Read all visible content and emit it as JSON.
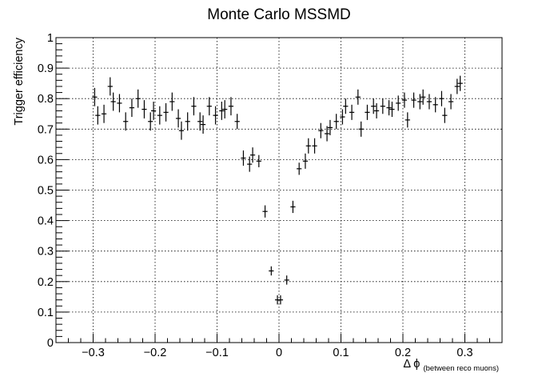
{
  "chart_data": {
    "type": "scatter",
    "title": "Monte Carlo MSSMD",
    "xlabel": "Δ ϕ",
    "xlabel_sub": "(between reco muons)",
    "ylabel": "Trigger efficiency",
    "xlim": [
      -0.36,
      0.36
    ],
    "ylim": [
      0,
      1
    ],
    "grid": true,
    "error_bars": true,
    "x_ticks": [
      -0.3,
      -0.2,
      -0.1,
      0,
      0.1,
      0.2,
      0.3
    ],
    "x_tick_labels": [
      "−0.3",
      "−0.2",
      "−0.1",
      "0",
      "0.1",
      "0.2",
      "0.3"
    ],
    "y_ticks": [
      0,
      0.1,
      0.2,
      0.3,
      0.4,
      0.5,
      0.6,
      0.7,
      0.8,
      0.9,
      1
    ],
    "y_tick_labels": [
      "0",
      "0.1",
      "0.2",
      "0.3",
      "0.4",
      "0.5",
      "0.6",
      "0.7",
      "0.8",
      "0.9",
      "1"
    ],
    "bin_half_width": 0.004,
    "points": [
      {
        "x": -0.2975,
        "y": 0.805,
        "err": 0.03
      },
      {
        "x": -0.2925,
        "y": 0.745,
        "err": 0.03
      },
      {
        "x": -0.2825,
        "y": 0.75,
        "err": 0.03
      },
      {
        "x": -0.2725,
        "y": 0.84,
        "err": 0.03
      },
      {
        "x": -0.2675,
        "y": 0.79,
        "err": 0.03
      },
      {
        "x": -0.2575,
        "y": 0.785,
        "err": 0.03
      },
      {
        "x": -0.2475,
        "y": 0.725,
        "err": 0.03
      },
      {
        "x": -0.2375,
        "y": 0.77,
        "err": 0.03
      },
      {
        "x": -0.2275,
        "y": 0.8,
        "err": 0.03
      },
      {
        "x": -0.2175,
        "y": 0.765,
        "err": 0.03
      },
      {
        "x": -0.2075,
        "y": 0.725,
        "err": 0.03
      },
      {
        "x": -0.2025,
        "y": 0.76,
        "err": 0.03
      },
      {
        "x": -0.1925,
        "y": 0.745,
        "err": 0.03
      },
      {
        "x": -0.1825,
        "y": 0.755,
        "err": 0.03
      },
      {
        "x": -0.1725,
        "y": 0.79,
        "err": 0.03
      },
      {
        "x": -0.1625,
        "y": 0.735,
        "err": 0.03
      },
      {
        "x": -0.1575,
        "y": 0.695,
        "err": 0.03
      },
      {
        "x": -0.1475,
        "y": 0.725,
        "err": 0.03
      },
      {
        "x": -0.1375,
        "y": 0.775,
        "err": 0.03
      },
      {
        "x": -0.1275,
        "y": 0.725,
        "err": 0.03
      },
      {
        "x": -0.1225,
        "y": 0.715,
        "err": 0.03
      },
      {
        "x": -0.1125,
        "y": 0.775,
        "err": 0.03
      },
      {
        "x": -0.1025,
        "y": 0.745,
        "err": 0.03
      },
      {
        "x": -0.0925,
        "y": 0.76,
        "err": 0.03
      },
      {
        "x": -0.0875,
        "y": 0.765,
        "err": 0.03
      },
      {
        "x": -0.0775,
        "y": 0.775,
        "err": 0.03
      },
      {
        "x": -0.0675,
        "y": 0.725,
        "err": 0.025
      },
      {
        "x": -0.0575,
        "y": 0.605,
        "err": 0.025
      },
      {
        "x": -0.0475,
        "y": 0.585,
        "err": 0.025
      },
      {
        "x": -0.0425,
        "y": 0.615,
        "err": 0.025
      },
      {
        "x": -0.0325,
        "y": 0.595,
        "err": 0.02
      },
      {
        "x": -0.0225,
        "y": 0.43,
        "err": 0.02
      },
      {
        "x": -0.0125,
        "y": 0.235,
        "err": 0.015
      },
      {
        "x": -0.0025,
        "y": 0.14,
        "err": 0.015
      },
      {
        "x": 0.0025,
        "y": 0.14,
        "err": 0.015
      },
      {
        "x": 0.0125,
        "y": 0.205,
        "err": 0.015
      },
      {
        "x": 0.0225,
        "y": 0.445,
        "err": 0.02
      },
      {
        "x": 0.0325,
        "y": 0.57,
        "err": 0.02
      },
      {
        "x": 0.0425,
        "y": 0.595,
        "err": 0.025
      },
      {
        "x": 0.0475,
        "y": 0.645,
        "err": 0.025
      },
      {
        "x": 0.0575,
        "y": 0.645,
        "err": 0.025
      },
      {
        "x": 0.0675,
        "y": 0.695,
        "err": 0.025
      },
      {
        "x": 0.0775,
        "y": 0.685,
        "err": 0.025
      },
      {
        "x": 0.0825,
        "y": 0.705,
        "err": 0.025
      },
      {
        "x": 0.0925,
        "y": 0.725,
        "err": 0.025
      },
      {
        "x": 0.1025,
        "y": 0.74,
        "err": 0.025
      },
      {
        "x": 0.1075,
        "y": 0.775,
        "err": 0.025
      },
      {
        "x": 0.1175,
        "y": 0.755,
        "err": 0.025
      },
      {
        "x": 0.1275,
        "y": 0.805,
        "err": 0.025
      },
      {
        "x": 0.1325,
        "y": 0.7,
        "err": 0.025
      },
      {
        "x": 0.1425,
        "y": 0.755,
        "err": 0.025
      },
      {
        "x": 0.1525,
        "y": 0.775,
        "err": 0.025
      },
      {
        "x": 0.1575,
        "y": 0.76,
        "err": 0.025
      },
      {
        "x": 0.1675,
        "y": 0.775,
        "err": 0.025
      },
      {
        "x": 0.1775,
        "y": 0.77,
        "err": 0.025
      },
      {
        "x": 0.1825,
        "y": 0.765,
        "err": 0.025
      },
      {
        "x": 0.1925,
        "y": 0.785,
        "err": 0.025
      },
      {
        "x": 0.2025,
        "y": 0.795,
        "err": 0.025
      },
      {
        "x": 0.2075,
        "y": 0.73,
        "err": 0.025
      },
      {
        "x": 0.2175,
        "y": 0.795,
        "err": 0.025
      },
      {
        "x": 0.2275,
        "y": 0.79,
        "err": 0.025
      },
      {
        "x": 0.2325,
        "y": 0.805,
        "err": 0.025
      },
      {
        "x": 0.2425,
        "y": 0.79,
        "err": 0.025
      },
      {
        "x": 0.2525,
        "y": 0.78,
        "err": 0.025
      },
      {
        "x": 0.2625,
        "y": 0.8,
        "err": 0.025
      },
      {
        "x": 0.2675,
        "y": 0.745,
        "err": 0.025
      },
      {
        "x": 0.2775,
        "y": 0.79,
        "err": 0.025
      },
      {
        "x": 0.2875,
        "y": 0.84,
        "err": 0.025
      },
      {
        "x": 0.2925,
        "y": 0.85,
        "err": 0.025
      }
    ]
  }
}
